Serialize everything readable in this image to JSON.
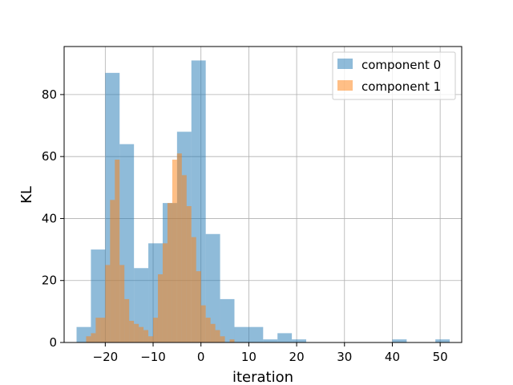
{
  "chart_data": {
    "type": "bar",
    "subtype": "overlaid-histogram",
    "title": "",
    "xlabel": "iteration",
    "ylabel": "KL",
    "xlim": [
      -28.6,
      54.5
    ],
    "ylim": [
      0,
      95.5
    ],
    "xticks": [
      -20,
      -10,
      0,
      10,
      20,
      30,
      40,
      50
    ],
    "xtick_labels": [
      "−20",
      "−10",
      "0",
      "10",
      "20",
      "30",
      "40",
      "50"
    ],
    "yticks": [
      0,
      20,
      40,
      60,
      80
    ],
    "ytick_labels": [
      "0",
      "20",
      "40",
      "60",
      "80"
    ],
    "grid": true,
    "legend_position": "top-right",
    "series": [
      {
        "name": "component 0",
        "color": "#1f77b4",
        "alpha": 0.5,
        "bin_width": 3.0,
        "bins": [
          [
            -26.0,
            5
          ],
          [
            -23.0,
            30
          ],
          [
            -20.0,
            87
          ],
          [
            -17.0,
            64
          ],
          [
            -14.0,
            24
          ],
          [
            -11.0,
            32
          ],
          [
            -8.0,
            45
          ],
          [
            -5.0,
            68
          ],
          [
            -2.0,
            91
          ],
          [
            1.0,
            35
          ],
          [
            4.0,
            14
          ],
          [
            7.0,
            5
          ],
          [
            10.0,
            5
          ],
          [
            13.0,
            1
          ],
          [
            16.0,
            3
          ],
          [
            19.0,
            1
          ],
          [
            22.0,
            0
          ],
          [
            25.0,
            0
          ],
          [
            28.0,
            0
          ],
          [
            31.0,
            0
          ],
          [
            34.0,
            0
          ],
          [
            37.0,
            0
          ],
          [
            40.0,
            1
          ],
          [
            43.0,
            0
          ],
          [
            46.0,
            0
          ],
          [
            49.0,
            1
          ]
        ]
      },
      {
        "name": "component 1",
        "color": "#ff7f0e",
        "alpha": 0.5,
        "bin_width": 1.0,
        "bins": [
          [
            -24.0,
            2
          ],
          [
            -23.0,
            3
          ],
          [
            -22.0,
            8
          ],
          [
            -21.0,
            8
          ],
          [
            -20.0,
            25
          ],
          [
            -19.0,
            46
          ],
          [
            -18.0,
            59
          ],
          [
            -17.0,
            25
          ],
          [
            -16.0,
            14
          ],
          [
            -15.0,
            7
          ],
          [
            -14.0,
            6
          ],
          [
            -13.0,
            5
          ],
          [
            -12.0,
            4
          ],
          [
            -11.0,
            2
          ],
          [
            -10.0,
            8
          ],
          [
            -9.0,
            22
          ],
          [
            -8.0,
            32
          ],
          [
            -7.0,
            45
          ],
          [
            -6.0,
            59
          ],
          [
            -5.0,
            61
          ],
          [
            -4.0,
            54
          ],
          [
            -3.0,
            44
          ],
          [
            -2.0,
            34
          ],
          [
            -1.0,
            23
          ],
          [
            0.0,
            12
          ],
          [
            1.0,
            8
          ],
          [
            2.0,
            6
          ],
          [
            3.0,
            4
          ],
          [
            4.0,
            2
          ],
          [
            5.0,
            0
          ],
          [
            6.0,
            1
          ],
          [
            7.0,
            0
          ],
          [
            8.0,
            0
          ]
        ]
      }
    ]
  }
}
